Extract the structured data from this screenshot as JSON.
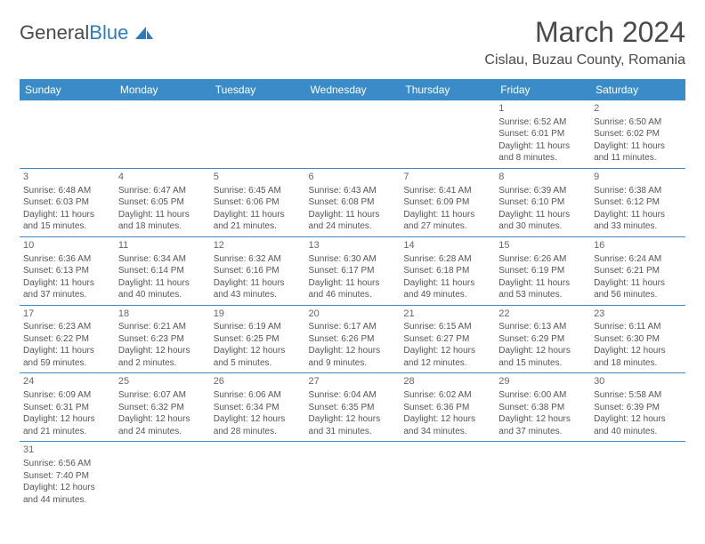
{
  "logo": {
    "text_a": "General",
    "text_b": "Blue"
  },
  "title": "March 2024",
  "location": "Cislau, Buzau County, Romania",
  "colors": {
    "header_bg": "#3b8bc9",
    "header_text": "#ffffff",
    "border": "#3b8bc9",
    "body_text": "#555555",
    "title_text": "#4a4a4a",
    "logo_blue": "#2f7bbf"
  },
  "day_headers": [
    "Sunday",
    "Monday",
    "Tuesday",
    "Wednesday",
    "Thursday",
    "Friday",
    "Saturday"
  ],
  "weeks": [
    [
      null,
      null,
      null,
      null,
      null,
      {
        "n": "1",
        "sr": "6:52 AM",
        "ss": "6:01 PM",
        "dl": "11 hours and 8 minutes."
      },
      {
        "n": "2",
        "sr": "6:50 AM",
        "ss": "6:02 PM",
        "dl": "11 hours and 11 minutes."
      }
    ],
    [
      {
        "n": "3",
        "sr": "6:48 AM",
        "ss": "6:03 PM",
        "dl": "11 hours and 15 minutes."
      },
      {
        "n": "4",
        "sr": "6:47 AM",
        "ss": "6:05 PM",
        "dl": "11 hours and 18 minutes."
      },
      {
        "n": "5",
        "sr": "6:45 AM",
        "ss": "6:06 PM",
        "dl": "11 hours and 21 minutes."
      },
      {
        "n": "6",
        "sr": "6:43 AM",
        "ss": "6:08 PM",
        "dl": "11 hours and 24 minutes."
      },
      {
        "n": "7",
        "sr": "6:41 AM",
        "ss": "6:09 PM",
        "dl": "11 hours and 27 minutes."
      },
      {
        "n": "8",
        "sr": "6:39 AM",
        "ss": "6:10 PM",
        "dl": "11 hours and 30 minutes."
      },
      {
        "n": "9",
        "sr": "6:38 AM",
        "ss": "6:12 PM",
        "dl": "11 hours and 33 minutes."
      }
    ],
    [
      {
        "n": "10",
        "sr": "6:36 AM",
        "ss": "6:13 PM",
        "dl": "11 hours and 37 minutes."
      },
      {
        "n": "11",
        "sr": "6:34 AM",
        "ss": "6:14 PM",
        "dl": "11 hours and 40 minutes."
      },
      {
        "n": "12",
        "sr": "6:32 AM",
        "ss": "6:16 PM",
        "dl": "11 hours and 43 minutes."
      },
      {
        "n": "13",
        "sr": "6:30 AM",
        "ss": "6:17 PM",
        "dl": "11 hours and 46 minutes."
      },
      {
        "n": "14",
        "sr": "6:28 AM",
        "ss": "6:18 PM",
        "dl": "11 hours and 49 minutes."
      },
      {
        "n": "15",
        "sr": "6:26 AM",
        "ss": "6:19 PM",
        "dl": "11 hours and 53 minutes."
      },
      {
        "n": "16",
        "sr": "6:24 AM",
        "ss": "6:21 PM",
        "dl": "11 hours and 56 minutes."
      }
    ],
    [
      {
        "n": "17",
        "sr": "6:23 AM",
        "ss": "6:22 PM",
        "dl": "11 hours and 59 minutes."
      },
      {
        "n": "18",
        "sr": "6:21 AM",
        "ss": "6:23 PM",
        "dl": "12 hours and 2 minutes."
      },
      {
        "n": "19",
        "sr": "6:19 AM",
        "ss": "6:25 PM",
        "dl": "12 hours and 5 minutes."
      },
      {
        "n": "20",
        "sr": "6:17 AM",
        "ss": "6:26 PM",
        "dl": "12 hours and 9 minutes."
      },
      {
        "n": "21",
        "sr": "6:15 AM",
        "ss": "6:27 PM",
        "dl": "12 hours and 12 minutes."
      },
      {
        "n": "22",
        "sr": "6:13 AM",
        "ss": "6:29 PM",
        "dl": "12 hours and 15 minutes."
      },
      {
        "n": "23",
        "sr": "6:11 AM",
        "ss": "6:30 PM",
        "dl": "12 hours and 18 minutes."
      }
    ],
    [
      {
        "n": "24",
        "sr": "6:09 AM",
        "ss": "6:31 PM",
        "dl": "12 hours and 21 minutes."
      },
      {
        "n": "25",
        "sr": "6:07 AM",
        "ss": "6:32 PM",
        "dl": "12 hours and 24 minutes."
      },
      {
        "n": "26",
        "sr": "6:06 AM",
        "ss": "6:34 PM",
        "dl": "12 hours and 28 minutes."
      },
      {
        "n": "27",
        "sr": "6:04 AM",
        "ss": "6:35 PM",
        "dl": "12 hours and 31 minutes."
      },
      {
        "n": "28",
        "sr": "6:02 AM",
        "ss": "6:36 PM",
        "dl": "12 hours and 34 minutes."
      },
      {
        "n": "29",
        "sr": "6:00 AM",
        "ss": "6:38 PM",
        "dl": "12 hours and 37 minutes."
      },
      {
        "n": "30",
        "sr": "5:58 AM",
        "ss": "6:39 PM",
        "dl": "12 hours and 40 minutes."
      }
    ],
    [
      {
        "n": "31",
        "sr": "6:56 AM",
        "ss": "7:40 PM",
        "dl": "12 hours and 44 minutes."
      },
      null,
      null,
      null,
      null,
      null,
      null
    ]
  ],
  "labels": {
    "sunrise": "Sunrise: ",
    "sunset": "Sunset: ",
    "daylight": "Daylight: "
  }
}
